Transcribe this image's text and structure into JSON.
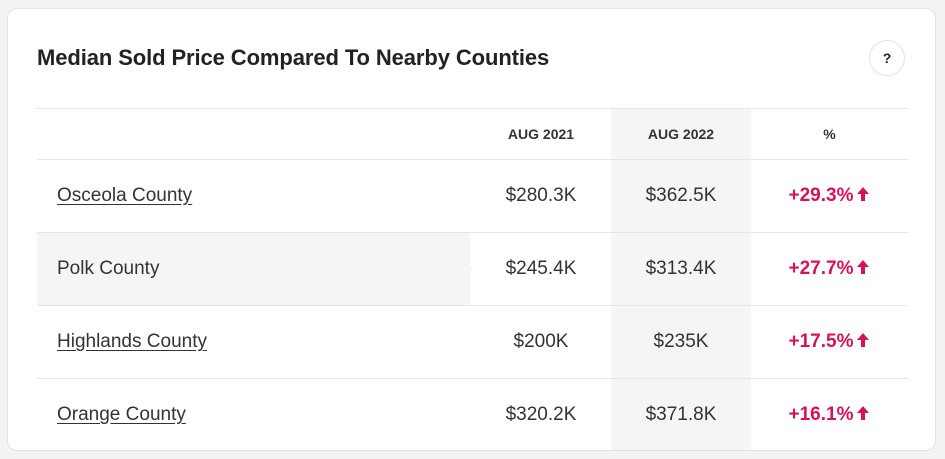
{
  "title": "Median Sold Price Compared To Nearby Counties",
  "help_label": "?",
  "columns": [
    "",
    "AUG 2021",
    "AUG 2022",
    "%"
  ],
  "rows": [
    {
      "name": "Osceola County",
      "v2021": "$280.3K",
      "v2022": "$362.5K",
      "pct": "+29.3%",
      "link": true
    },
    {
      "name": "Polk County",
      "v2021": "$245.4K",
      "v2022": "$313.4K",
      "pct": "+27.7%",
      "link": false
    },
    {
      "name": "Highlands County",
      "v2021": "$200K",
      "v2022": "$235K",
      "pct": "+17.5%",
      "link": true
    },
    {
      "name": "Orange County",
      "v2021": "$320.2K",
      "v2022": "$371.8K",
      "pct": "+16.1%",
      "link": true
    }
  ],
  "colors": {
    "increase": "#d81159",
    "highlight": "#f5f5f5"
  },
  "icons": {
    "trend": "arrow-up-icon",
    "help": "question-icon"
  }
}
